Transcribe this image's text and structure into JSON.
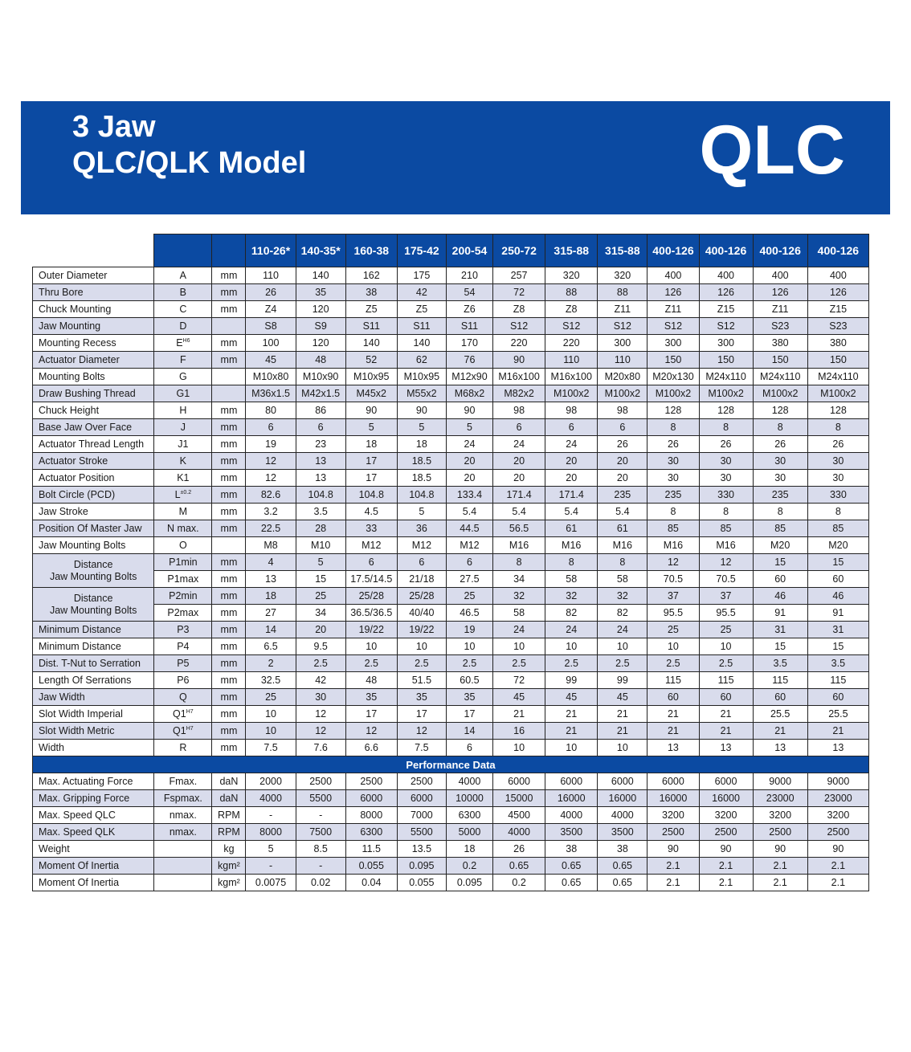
{
  "banner": {
    "line1": "3 Jaw",
    "line2": "QLC/QLK Model",
    "logo": "QLC",
    "color": "#0b4aa2"
  },
  "columns": [
    "110-26*",
    "140-35*",
    "160-38",
    "175-42",
    "200-54",
    "250-72",
    "315-88",
    "315-88",
    "400-126",
    "400-126",
    "400-126",
    "400-126"
  ],
  "rows": [
    {
      "label": "Outer Diameter",
      "sym": "A",
      "unit": "mm",
      "values": [
        "110",
        "140",
        "162",
        "175",
        "210",
        "257",
        "320",
        "320",
        "400",
        "400",
        "400",
        "400"
      ]
    },
    {
      "label": "Thru Bore",
      "sym": "B",
      "unit": "mm",
      "values": [
        "26",
        "35",
        "38",
        "42",
        "54",
        "72",
        "88",
        "88",
        "126",
        "126",
        "126",
        "126"
      ]
    },
    {
      "label": "Chuck Mounting",
      "sym": "C",
      "unit": "mm",
      "values": [
        "Z4",
        "120",
        "Z5",
        "Z5",
        "Z6",
        "Z8",
        "Z8",
        "Z11",
        "Z11",
        "Z15",
        "Z11",
        "Z15"
      ]
    },
    {
      "label": "Jaw Mounting",
      "sym": "D",
      "unit": "",
      "values": [
        "S8",
        "S9",
        "S11",
        "S11",
        "S11",
        "S12",
        "S12",
        "S12",
        "S12",
        "S12",
        "S23",
        "S23"
      ]
    },
    {
      "label": "Mounting Recess",
      "sym": "E",
      "sup": "H6",
      "unit": "mm",
      "values": [
        "100",
        "120",
        "140",
        "140",
        "170",
        "220",
        "220",
        "300",
        "300",
        "300",
        "380",
        "380"
      ]
    },
    {
      "label": "Actuator Diameter",
      "sym": "F",
      "unit": "mm",
      "values": [
        "45",
        "48",
        "52",
        "62",
        "76",
        "90",
        "110",
        "110",
        "150",
        "150",
        "150",
        "150"
      ]
    },
    {
      "label": "Mounting Bolts",
      "sym": "G",
      "unit": "",
      "values": [
        "M10x80",
        "M10x90",
        "M10x95",
        "M10x95",
        "M12x90",
        "M16x100",
        "M16x100",
        "M20x80",
        "M20x130",
        "M24x110",
        "M24x110",
        "M24x110"
      ]
    },
    {
      "label": "Draw Bushing Thread",
      "sym": "G1",
      "unit": "",
      "values": [
        "M36x1.5",
        "M42x1.5",
        "M45x2",
        "M55x2",
        "M68x2",
        "M82x2",
        "M100x2",
        "M100x2",
        "M100x2",
        "M100x2",
        "M100x2",
        "M100x2"
      ]
    },
    {
      "label": "Chuck Height",
      "sym": "H",
      "unit": "mm",
      "values": [
        "80",
        "86",
        "90",
        "90",
        "90",
        "98",
        "98",
        "98",
        "128",
        "128",
        "128",
        "128"
      ]
    },
    {
      "label": "Base Jaw Over Face",
      "sym": "J",
      "unit": "mm",
      "values": [
        "6",
        "6",
        "5",
        "5",
        "5",
        "6",
        "6",
        "6",
        "8",
        "8",
        "8",
        "8"
      ]
    },
    {
      "label": "Actuator Thread Length",
      "sym": "J1",
      "unit": "mm",
      "values": [
        "19",
        "23",
        "18",
        "18",
        "24",
        "24",
        "24",
        "26",
        "26",
        "26",
        "26",
        "26"
      ]
    },
    {
      "label": "Actuator Stroke",
      "sym": "K",
      "unit": "mm",
      "values": [
        "12",
        "13",
        "17",
        "18.5",
        "20",
        "20",
        "20",
        "20",
        "30",
        "30",
        "30",
        "30"
      ]
    },
    {
      "label": "Actuator Position",
      "sym": "K1",
      "unit": "mm",
      "values": [
        "12",
        "13",
        "17",
        "18.5",
        "20",
        "20",
        "20",
        "20",
        "30",
        "30",
        "30",
        "30"
      ]
    },
    {
      "label": "Bolt Circle (PCD)",
      "sym": "L",
      "sup": "±0.2",
      "unit": "mm",
      "values": [
        "82.6",
        "104.8",
        "104.8",
        "104.8",
        "133.4",
        "171.4",
        "171.4",
        "235",
        "235",
        "330",
        "235",
        "330"
      ]
    },
    {
      "label": "Jaw Stroke",
      "sym": "M",
      "unit": "mm",
      "values": [
        "3.2",
        "3.5",
        "4.5",
        "5",
        "5.4",
        "5.4",
        "5.4",
        "5.4",
        "8",
        "8",
        "8",
        "8"
      ]
    },
    {
      "label": "Position Of Master Jaw",
      "sym": "N max.",
      "unit": "mm",
      "values": [
        "22.5",
        "28",
        "33",
        "36",
        "44.5",
        "56.5",
        "61",
        "61",
        "85",
        "85",
        "85",
        "85"
      ]
    },
    {
      "label": "Jaw Mounting Bolts",
      "sym": "O",
      "unit": "",
      "values": [
        "M8",
        "M10",
        "M12",
        "M12",
        "M12",
        "M16",
        "M16",
        "M16",
        "M16",
        "M16",
        "M20",
        "M20"
      ]
    }
  ],
  "dist1": {
    "label1": "Distance",
    "label2": "Jaw Mounting Bolts",
    "rows": [
      {
        "sym": "P1min",
        "unit": "mm",
        "values": [
          "4",
          "5",
          "6",
          "6",
          "6",
          "8",
          "8",
          "8",
          "12",
          "12",
          "15",
          "15"
        ]
      },
      {
        "sym": "P1max",
        "unit": "mm",
        "values": [
          "13",
          "15",
          "17.5/14.5",
          "21/18",
          "27.5",
          "34",
          "58",
          "58",
          "70.5",
          "70.5",
          "60",
          "60"
        ]
      }
    ]
  },
  "dist2": {
    "label1": "Distance",
    "label2": "Jaw Mounting Bolts",
    "rows": [
      {
        "sym": "P2min",
        "unit": "mm",
        "values": [
          "18",
          "25",
          "25/28",
          "25/28",
          "25",
          "32",
          "32",
          "32",
          "37",
          "37",
          "46",
          "46"
        ]
      },
      {
        "sym": "P2max",
        "unit": "mm",
        "values": [
          "27",
          "34",
          "36.5/36.5",
          "40/40",
          "46.5",
          "58",
          "82",
          "82",
          "95.5",
          "95.5",
          "91",
          "91"
        ]
      }
    ]
  },
  "rows2": [
    {
      "label": "Minimum Distance",
      "sym": "P3",
      "unit": "mm",
      "values": [
        "14",
        "20",
        "19/22",
        "19/22",
        "19",
        "24",
        "24",
        "24",
        "25",
        "25",
        "31",
        "31"
      ]
    },
    {
      "label": "Minimum Distance",
      "sym": "P4",
      "unit": "mm",
      "values": [
        "6.5",
        "9.5",
        "10",
        "10",
        "10",
        "10",
        "10",
        "10",
        "10",
        "10",
        "15",
        "15"
      ]
    },
    {
      "label": "Dist. T-Nut to Serration",
      "sym": "P5",
      "unit": "mm",
      "values": [
        "2",
        "2.5",
        "2.5",
        "2.5",
        "2.5",
        "2.5",
        "2.5",
        "2.5",
        "2.5",
        "2.5",
        "3.5",
        "3.5"
      ]
    },
    {
      "label": "Length Of Serrations",
      "sym": "P6",
      "unit": "mm",
      "values": [
        "32.5",
        "42",
        "48",
        "51.5",
        "60.5",
        "72",
        "99",
        "99",
        "115",
        "115",
        "115",
        "115"
      ]
    },
    {
      "label": "Jaw Width",
      "sym": "Q",
      "unit": "mm",
      "values": [
        "25",
        "30",
        "35",
        "35",
        "35",
        "45",
        "45",
        "45",
        "60",
        "60",
        "60",
        "60"
      ]
    },
    {
      "label": "Slot Width Imperial",
      "sym": "Q1",
      "sup": "H7",
      "unit": "mm",
      "values": [
        "10",
        "12",
        "17",
        "17",
        "17",
        "21",
        "21",
        "21",
        "21",
        "21",
        "25.5",
        "25.5"
      ]
    },
    {
      "label": "Slot Width Metric",
      "sym": "Q1",
      "sup": "H7",
      "unit": "mm",
      "values": [
        "10",
        "12",
        "12",
        "12",
        "14",
        "16",
        "21",
        "21",
        "21",
        "21",
        "21",
        "21"
      ]
    },
    {
      "label": "Width",
      "sym": "R",
      "unit": "mm",
      "values": [
        "7.5",
        "7.6",
        "6.6",
        "7.5",
        "6",
        "10",
        "10",
        "10",
        "13",
        "13",
        "13",
        "13"
      ]
    }
  ],
  "performance_title": "Performance Data",
  "perf": [
    {
      "label": "Max. Actuating Force",
      "sym": "Fmax.",
      "unit": "daN",
      "values": [
        "2000",
        "2500",
        "2500",
        "2500",
        "4000",
        "6000",
        "6000",
        "6000",
        "6000",
        "6000",
        "9000",
        "9000"
      ]
    },
    {
      "label": "Max. Gripping Force",
      "sym": "Fspmax.",
      "unit": "daN",
      "values": [
        "4000",
        "5500",
        "6000",
        "6000",
        "10000",
        "15000",
        "16000",
        "16000",
        "16000",
        "16000",
        "23000",
        "23000"
      ]
    },
    {
      "label": "Max. Speed QLC",
      "sym": "nmax.",
      "unit": "RPM",
      "values": [
        "-",
        "-",
        "8000",
        "7000",
        "6300",
        "4500",
        "4000",
        "4000",
        "3200",
        "3200",
        "3200",
        "3200"
      ]
    },
    {
      "label": "Max. Speed QLK",
      "sym": "nmax.",
      "unit": "RPM",
      "values": [
        "8000",
        "7500",
        "6300",
        "5500",
        "5000",
        "4000",
        "3500",
        "3500",
        "2500",
        "2500",
        "2500",
        "2500"
      ]
    },
    {
      "label": "Weight",
      "sym": "",
      "unit": "kg",
      "values": [
        "5",
        "8.5",
        "11.5",
        "13.5",
        "18",
        "26",
        "38",
        "38",
        "90",
        "90",
        "90",
        "90"
      ]
    },
    {
      "label": "Moment Of Inertia",
      "sym": "",
      "unit": "kgm²",
      "values": [
        "-",
        "-",
        "0.055",
        "0.095",
        "0.2",
        "0.65",
        "0.65",
        "0.65",
        "2.1",
        "2.1",
        "2.1",
        "2.1"
      ]
    },
    {
      "label": "Moment Of Inertia",
      "sym": "",
      "unit": "kgm²",
      "values": [
        "0.0075",
        "0.02",
        "0.04",
        "0.055",
        "0.095",
        "0.2",
        "0.65",
        "0.65",
        "2.1",
        "2.1",
        "2.1",
        "2.1"
      ]
    }
  ]
}
